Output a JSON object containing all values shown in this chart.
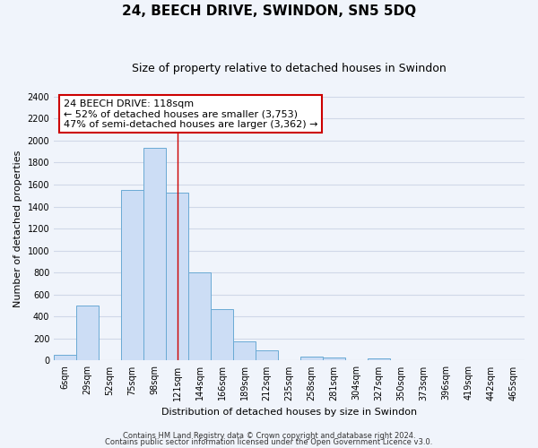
{
  "title": "24, BEECH DRIVE, SWINDON, SN5 5DQ",
  "subtitle": "Size of property relative to detached houses in Swindon",
  "xlabel": "Distribution of detached houses by size in Swindon",
  "ylabel": "Number of detached properties",
  "bar_labels": [
    "6sqm",
    "29sqm",
    "52sqm",
    "75sqm",
    "98sqm",
    "121sqm",
    "144sqm",
    "166sqm",
    "189sqm",
    "212sqm",
    "235sqm",
    "258sqm",
    "281sqm",
    "304sqm",
    "327sqm",
    "350sqm",
    "373sqm",
    "396sqm",
    "419sqm",
    "442sqm",
    "465sqm"
  ],
  "bar_values": [
    50,
    500,
    0,
    1550,
    1930,
    1530,
    800,
    470,
    175,
    90,
    0,
    35,
    25,
    0,
    20,
    0,
    0,
    0,
    0,
    0,
    0
  ],
  "bar_color": "#ccddf5",
  "bar_edge_color": "#6aaad4",
  "ylim": [
    0,
    2400
  ],
  "yticks": [
    0,
    200,
    400,
    600,
    800,
    1000,
    1200,
    1400,
    1600,
    1800,
    2000,
    2200,
    2400
  ],
  "vline_x_index": 5,
  "vline_color": "#cc0000",
  "annotation_title": "24 BEECH DRIVE: 118sqm",
  "annotation_line1": "← 52% of detached houses are smaller (3,753)",
  "annotation_line2": "47% of semi-detached houses are larger (3,362) →",
  "annotation_box_color": "#ffffff",
  "annotation_box_edge": "#cc0000",
  "footer1": "Contains HM Land Registry data © Crown copyright and database right 2024.",
  "footer2": "Contains public sector information licensed under the Open Government Licence v3.0.",
  "bg_color": "#f0f4fb",
  "plot_bg_color": "#f0f4fb",
  "grid_color": "#d0d8e8",
  "title_fontsize": 11,
  "subtitle_fontsize": 9,
  "axis_label_fontsize": 8,
  "tick_fontsize": 7,
  "annotation_fontsize": 8,
  "footer_fontsize": 6
}
